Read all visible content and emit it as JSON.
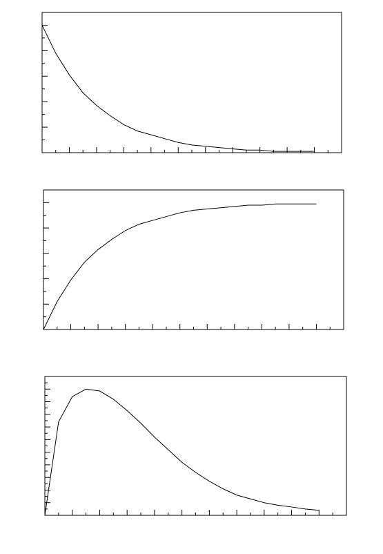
{
  "chart_data": [
    {
      "type": "line",
      "x": [
        0,
        0.25,
        0.5,
        0.75,
        1,
        1.25,
        1.5,
        1.75,
        2,
        2.25,
        2.5,
        2.75,
        3,
        3.25,
        3.5,
        3.75,
        4,
        4.25,
        4.5,
        4.75,
        5
      ],
      "series": [
        {
          "color": "#000000",
          "values": [
            1,
            0.78,
            0.61,
            0.47,
            0.37,
            0.29,
            0.22,
            0.17,
            0.14,
            0.11,
            0.08,
            0.06,
            0.05,
            0.04,
            0.03,
            0.02,
            0.02,
            0.01,
            0.01,
            0.01,
            0.01
          ]
        }
      ],
      "xlim": [
        0,
        5.5
      ],
      "ylim": [
        0,
        1.1
      ],
      "xticks": [
        0,
        0.25,
        0.5,
        0.75,
        1,
        1.25,
        1.5,
        1.75,
        2,
        2.25,
        2.5,
        2.75,
        3,
        3.25,
        3.5,
        3.75,
        4,
        4.25,
        4.5,
        4.75,
        5,
        5.25,
        5.5
      ],
      "yticks": [
        0,
        0.1,
        0.2,
        0.3,
        0.4,
        0.5,
        0.6,
        0.7,
        0.8,
        0.9,
        1,
        1.1
      ]
    },
    {
      "type": "line",
      "x": [
        0,
        0.25,
        0.5,
        0.75,
        1,
        1.25,
        1.5,
        1.75,
        2,
        2.25,
        2.5,
        2.75,
        3,
        3.25,
        3.5,
        3.75,
        4,
        4.25,
        4.5,
        4.75,
        5
      ],
      "series": [
        {
          "color": "#000000",
          "values": [
            0,
            0.22,
            0.39,
            0.53,
            0.63,
            0.71,
            0.78,
            0.83,
            0.86,
            0.89,
            0.92,
            0.94,
            0.95,
            0.96,
            0.97,
            0.98,
            0.98,
            0.99,
            0.99,
            0.99,
            0.99
          ]
        }
      ],
      "xlim": [
        0,
        5.5
      ],
      "ylim": [
        0,
        1.1
      ],
      "xticks": [
        0,
        0.25,
        0.5,
        0.75,
        1,
        1.25,
        1.5,
        1.75,
        2,
        2.25,
        2.5,
        2.75,
        3,
        3.25,
        3.5,
        3.75,
        4,
        4.25,
        4.5,
        4.75,
        5,
        5.25,
        5.5
      ],
      "yticks": [
        0,
        0.1,
        0.2,
        0.3,
        0.4,
        0.5,
        0.6,
        0.7,
        0.8,
        0.9,
        1,
        1.1
      ]
    },
    {
      "type": "line",
      "x": [
        0,
        0.25,
        0.5,
        0.75,
        1,
        1.25,
        1.5,
        1.75,
        2,
        2.25,
        2.5,
        2.75,
        3,
        3.25,
        3.5,
        3.75,
        4,
        4.25,
        4.5,
        4.75,
        5
      ],
      "series": [
        {
          "color": "#000000",
          "values": [
            0,
            0.74,
            0.94,
            1,
            0.985,
            0.92,
            0.83,
            0.73,
            0.62,
            0.52,
            0.42,
            0.34,
            0.27,
            0.21,
            0.16,
            0.13,
            0.1,
            0.08,
            0.066,
            0.05,
            0.04
          ]
        }
      ],
      "xlim": [
        0,
        5.5
      ],
      "ylim": [
        0,
        1.1
      ],
      "xticks": [
        0,
        0.25,
        0.5,
        0.75,
        1,
        1.25,
        1.5,
        1.75,
        2,
        2.25,
        2.5,
        2.75,
        3,
        3.25,
        3.5,
        3.75,
        4,
        4.25,
        4.5,
        4.75,
        5,
        5.25,
        5.5
      ],
      "yticks": [
        0,
        0.05,
        0.1,
        0.15,
        0.2,
        0.25,
        0.3,
        0.35,
        0.4,
        0.45,
        0.5,
        0.55,
        0.6,
        0.65,
        0.7,
        0.75,
        0.8,
        0.85,
        0.9,
        0.95,
        1,
        1.05,
        1.1
      ]
    }
  ]
}
